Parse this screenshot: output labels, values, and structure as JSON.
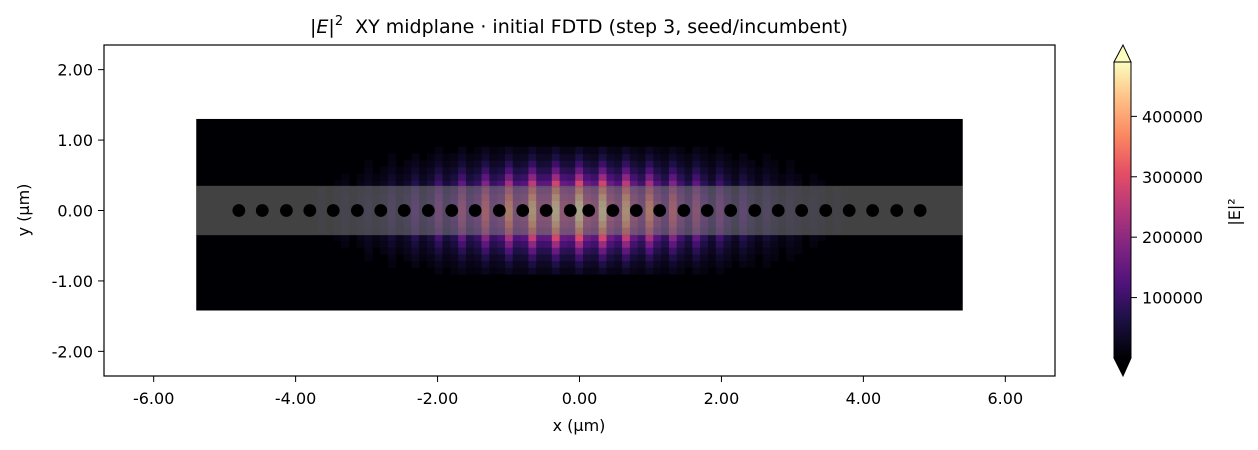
{
  "chart_data": {
    "type": "heatmap",
    "title_var": "E",
    "title_exp": "2",
    "title_rest": "XY midplane · initial FDTD (step 3, seed/incumbent)",
    "xlabel": "x (µm)",
    "ylabel": "y (µm)",
    "xlim": [
      -6.7,
      6.7
    ],
    "ylim": [
      -2.35,
      2.35
    ],
    "xticks": [
      -6,
      -4,
      -2,
      0,
      2,
      4,
      6
    ],
    "xtick_labels": [
      "-6.00",
      "-4.00",
      "-2.00",
      "0.00",
      "2.00",
      "4.00",
      "6.00"
    ],
    "yticks": [
      2,
      1,
      0,
      -1,
      -2
    ],
    "ytick_labels": [
      "2.00",
      "1.00",
      "0.00",
      "-1.00",
      "-2.00"
    ],
    "field_extent": {
      "x": [
        -5.4,
        5.4
      ],
      "y": [
        -1.42,
        1.3
      ]
    },
    "waveguide": {
      "y": [
        -0.35,
        0.35
      ],
      "color": "#6e6e6e"
    },
    "holes": {
      "x": [
        -4.8,
        -4.47,
        -4.13,
        -3.8,
        -3.47,
        -3.13,
        -2.8,
        -2.47,
        -2.13,
        -1.8,
        -1.47,
        -1.13,
        -0.8,
        -0.47,
        -0.13,
        0.13,
        0.47,
        0.8,
        1.13,
        1.47,
        1.8,
        2.13,
        2.47,
        2.8,
        3.13,
        3.47,
        3.8,
        4.13,
        4.47,
        4.8
      ],
      "radius_um": 0.09,
      "color": "#000000"
    },
    "field_model": {
      "peak": 480000,
      "envelope_sigma_x_um": 1.4,
      "envelope_sigma_y_um": 0.38
    },
    "colorbar": {
      "label": "|E|²",
      "cmap": "magma",
      "range": [
        0,
        490000
      ],
      "ticks": [
        100000,
        200000,
        300000,
        400000
      ],
      "tick_labels": [
        "100000",
        "200000",
        "300000",
        "400000"
      ],
      "extend": "both"
    }
  }
}
